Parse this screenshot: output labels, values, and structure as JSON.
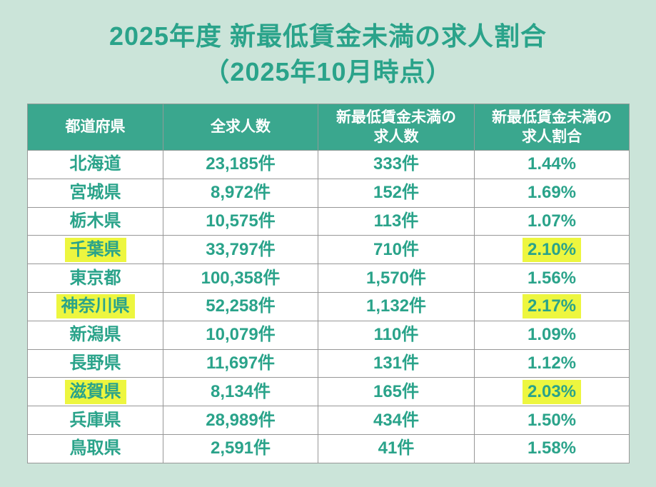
{
  "title": {
    "line1": "2025年度 新最低賃金未満の求人割合",
    "line2": "（2025年10月時点）"
  },
  "colors": {
    "background": "#cbe4d9",
    "accent_teal_text": "#2aa38a",
    "header_background": "#3aa78e",
    "header_text": "#ffffff",
    "highlight_yellow": "#edf63f",
    "cell_border": "#979797",
    "cell_background": "#ffffff"
  },
  "table": {
    "headers": [
      "都道府県",
      "全求人数",
      "新最低賃金未満の\n求人数",
      "新最低賃金未満の\n求人割合"
    ],
    "rows": [
      {
        "prefecture": "北海道",
        "total": "23,185件",
        "below": "333件",
        "ratio": "1.44%",
        "highlighted": false
      },
      {
        "prefecture": "宮城県",
        "total": "8,972件",
        "below": "152件",
        "ratio": "1.69%",
        "highlighted": false
      },
      {
        "prefecture": "栃木県",
        "total": "10,575件",
        "below": "113件",
        "ratio": "1.07%",
        "highlighted": false
      },
      {
        "prefecture": "千葉県",
        "total": "33,797件",
        "below": "710件",
        "ratio": "2.10%",
        "highlighted": true
      },
      {
        "prefecture": "東京都",
        "total": "100,358件",
        "below": "1,570件",
        "ratio": "1.56%",
        "highlighted": false
      },
      {
        "prefecture": "神奈川県",
        "total": "52,258件",
        "below": "1,132件",
        "ratio": "2.17%",
        "highlighted": true
      },
      {
        "prefecture": "新潟県",
        "total": "10,079件",
        "below": "110件",
        "ratio": "1.09%",
        "highlighted": false
      },
      {
        "prefecture": "長野県",
        "total": "11,697件",
        "below": "131件",
        "ratio": "1.12%",
        "highlighted": false
      },
      {
        "prefecture": "滋賀県",
        "total": "8,134件",
        "below": "165件",
        "ratio": "2.03%",
        "highlighted": true
      },
      {
        "prefecture": "兵庫県",
        "total": "28,989件",
        "below": "434件",
        "ratio": "1.50%",
        "highlighted": false
      },
      {
        "prefecture": "鳥取県",
        "total": "2,591件",
        "below": "41件",
        "ratio": "1.58%",
        "highlighted": false
      }
    ]
  }
}
